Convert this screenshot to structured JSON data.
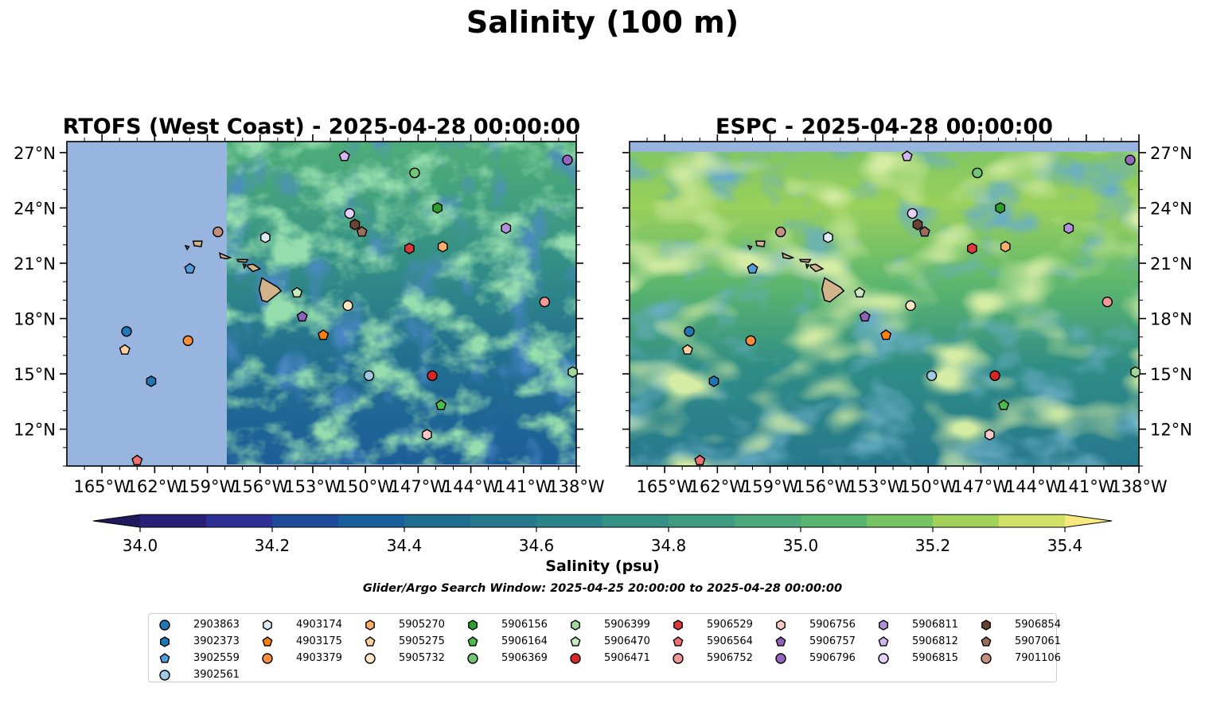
{
  "suptitle": "Salinity (100 m)",
  "colorbar": {
    "label": "Salinity (psu)",
    "ticks": [
      "34.0",
      "34.2",
      "34.4",
      "34.6",
      "34.8",
      "35.0",
      "35.2",
      "35.4"
    ],
    "levels": [
      34.0,
      34.1,
      34.2,
      34.3,
      34.4,
      34.5,
      34.6,
      34.7,
      34.8,
      34.9,
      35.0,
      35.1,
      35.2,
      35.3,
      35.4
    ],
    "colors": [
      "#282076",
      "#2c2f94",
      "#1f4a9c",
      "#195f9b",
      "#1f6e92",
      "#26798d",
      "#2b8489",
      "#359185",
      "#3f9c7f",
      "#4aa879",
      "#58b570",
      "#78c464",
      "#a3d25a",
      "#d1e167"
    ],
    "under_color": "#201a5c",
    "over_color": "#f7e97f"
  },
  "search_window": "Glider/Argo Search Window: 2025-04-25 20:00:00 to 2025-04-28 00:00:00",
  "chart_data": [
    {
      "type": "map",
      "title": "RTOFS (West Coast) - 2025-04-28 00:00:00",
      "variable": "Salinity at 100 m (psu)",
      "lon_range": [
        -167,
        -138
      ],
      "lat_range": [
        10,
        27.6
      ],
      "x_ticks": [
        "165°W",
        "162°W",
        "159°W",
        "156°W",
        "153°W",
        "150°W",
        "147°W",
        "144°W",
        "141°W",
        "138°W"
      ],
      "y_ticks": [
        "27°N",
        "24°N",
        "21°N",
        "18°N",
        "15°N",
        "12°N"
      ],
      "y_tick_side": "left",
      "no_data_region_lon_max": -157.9,
      "no_data_color": "#98b5e0"
    },
    {
      "type": "map",
      "title": "ESPC - 2025-04-28 00:00:00",
      "variable": "Salinity at 100 m (psu)",
      "lon_range": [
        -167,
        -138
      ],
      "lat_range": [
        10,
        27.6
      ],
      "x_ticks": [
        "165°W",
        "162°W",
        "159°W",
        "156°W",
        "153°W",
        "150°W",
        "147°W",
        "144°W",
        "141°W",
        "138°W"
      ],
      "y_ticks": [
        "27°N",
        "24°N",
        "21°N",
        "18°N",
        "15°N",
        "12°N"
      ],
      "y_tick_side": "right",
      "no_data_band_lat_min": 27.1,
      "no_data_color": "#98b5e0"
    }
  ],
  "floats": [
    {
      "id": "2903863",
      "marker": "circle",
      "color": "#1f77b4",
      "lon": -163.6,
      "lat": 17.3
    },
    {
      "id": "3902373",
      "marker": "hexagon",
      "color": "#1f77b4",
      "lon": -162.2,
      "lat": 14.6
    },
    {
      "id": "3902559",
      "marker": "pentagon",
      "color": "#4f9fdc",
      "lon": -160.0,
      "lat": 20.7
    },
    {
      "id": "3902561",
      "marker": "circle",
      "color": "#9ecae1",
      "lon": -149.8,
      "lat": 14.9
    },
    {
      "id": "4903174",
      "marker": "hexagon",
      "color": "#deebf7",
      "lon": -155.7,
      "lat": 22.4
    },
    {
      "id": "4903175",
      "marker": "pentagon",
      "color": "#ff7f0e",
      "lon": -152.4,
      "lat": 17.1
    },
    {
      "id": "4903379",
      "marker": "circle",
      "color": "#fd8d3c",
      "lon": -160.1,
      "lat": 16.8
    },
    {
      "id": "5905270",
      "marker": "hexagon",
      "color": "#fdae6b",
      "lon": -145.6,
      "lat": 21.9
    },
    {
      "id": "5905275",
      "marker": "pentagon",
      "color": "#fdd0a2",
      "lon": -163.7,
      "lat": 16.3
    },
    {
      "id": "5905732",
      "marker": "circle",
      "color": "#ffe5c2",
      "lon": -151.0,
      "lat": 18.7
    },
    {
      "id": "5906156",
      "marker": "hexagon",
      "color": "#2ca02c",
      "lon": -145.9,
      "lat": 24.0
    },
    {
      "id": "5906164",
      "marker": "pentagon",
      "color": "#4bbd4b",
      "lon": -145.7,
      "lat": 13.3
    },
    {
      "id": "5906369",
      "marker": "circle",
      "color": "#74c476",
      "lon": -147.2,
      "lat": 25.9
    },
    {
      "id": "5906399",
      "marker": "hexagon",
      "color": "#a1d99b",
      "lon": -138.2,
      "lat": 15.1
    },
    {
      "id": "5906470",
      "marker": "pentagon",
      "color": "#c7e9c0",
      "lon": -153.9,
      "lat": 19.4
    },
    {
      "id": "5906471",
      "marker": "circle",
      "color": "#d62728",
      "lon": -146.2,
      "lat": 14.9
    },
    {
      "id": "5906529",
      "marker": "hexagon",
      "color": "#de3a3a",
      "lon": -147.5,
      "lat": 21.8
    },
    {
      "id": "5906564",
      "marker": "pentagon",
      "color": "#f07070",
      "lon": -163.0,
      "lat": 10.3
    },
    {
      "id": "5906752",
      "marker": "circle",
      "color": "#f39898",
      "lon": -139.8,
      "lat": 18.9
    },
    {
      "id": "5906756",
      "marker": "hexagon",
      "color": "#fbc8c8",
      "lon": -146.5,
      "lat": 11.7
    },
    {
      "id": "5906757",
      "marker": "pentagon",
      "color": "#8e63b8",
      "lon": -153.6,
      "lat": 18.1
    },
    {
      "id": "5906796",
      "marker": "circle",
      "color": "#9467bd",
      "lon": -138.5,
      "lat": 26.6
    },
    {
      "id": "5906811",
      "marker": "hexagon",
      "color": "#b291d9",
      "lon": -142.0,
      "lat": 22.9
    },
    {
      "id": "5906812",
      "marker": "pentagon",
      "color": "#d2b6f0",
      "lon": -151.2,
      "lat": 26.8
    },
    {
      "id": "5906815",
      "marker": "circle",
      "color": "#e4d0f8",
      "lon": -150.9,
      "lat": 23.7
    },
    {
      "id": "5906854",
      "marker": "hexagon",
      "color": "#6b4332",
      "lon": -150.6,
      "lat": 23.1
    },
    {
      "id": "5907061",
      "marker": "pentagon",
      "color": "#9b6b5b",
      "lon": -150.2,
      "lat": 22.7
    },
    {
      "id": "7901106",
      "marker": "circle",
      "color": "#c49081",
      "lon": -158.4,
      "lat": 22.7
    }
  ]
}
